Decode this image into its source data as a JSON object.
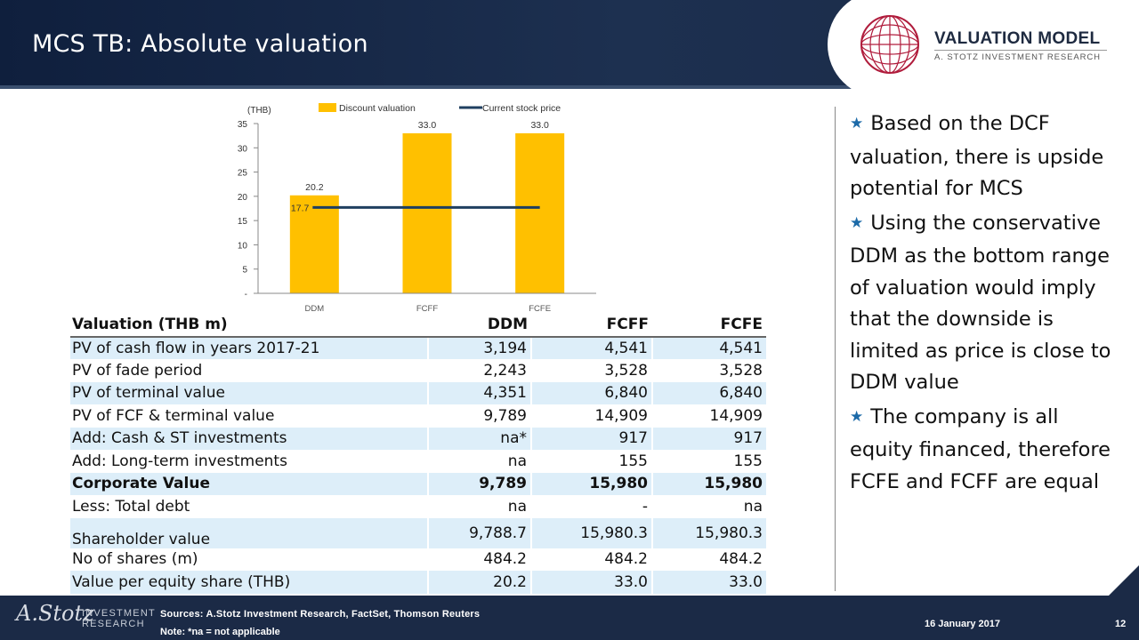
{
  "header": {
    "title": "MCS TB: Absolute valuation",
    "logo_main": "VALUATION MODEL",
    "logo_sub": "A. STOTZ INVESTMENT RESEARCH"
  },
  "chart_data": {
    "type": "bar",
    "ylabel": "(THB)",
    "categories": [
      "DDM",
      "FCFF",
      "FCFE"
    ],
    "series": [
      {
        "name": "Discount valuation",
        "type": "bar",
        "values": [
          20.2,
          33.0,
          33.0
        ],
        "color": "#ffc000"
      },
      {
        "name": "Current stock price",
        "type": "line",
        "values": [
          17.7,
          17.7,
          17.7
        ],
        "color": "#1f3f60"
      }
    ],
    "data_labels": [
      "20.2",
      "33.0",
      "33.0"
    ],
    "line_label": "17.7",
    "ylim": [
      0,
      35
    ],
    "yticks": [
      "-",
      "5",
      "10",
      "15",
      "20",
      "25",
      "30",
      "35"
    ],
    "grid": false,
    "legend": "top"
  },
  "table": {
    "headers": [
      "Valuation (THB m)",
      "DDM",
      "FCFF",
      "FCFE"
    ],
    "rows": [
      {
        "label": "PV of cash flow in years 2017-21",
        "values": [
          "3,194",
          "4,541",
          "4,541"
        ]
      },
      {
        "label": "PV of fade period",
        "values": [
          "2,243",
          "3,528",
          "3,528"
        ]
      },
      {
        "label": "PV of terminal value",
        "values": [
          "4,351",
          "6,840",
          "6,840"
        ]
      },
      {
        "label": "PV of FCF & terminal value",
        "values": [
          "9,789",
          "14,909",
          "14,909"
        ]
      },
      {
        "label": "Add: Cash & ST investments",
        "values": [
          "na*",
          "917",
          "917"
        ]
      },
      {
        "label": "Add: Long-term investments",
        "values": [
          "na",
          "155",
          "155"
        ]
      },
      {
        "label": "Corporate Value",
        "values": [
          "9,789",
          "15,980",
          "15,980"
        ]
      },
      {
        "label": "Less: Total debt",
        "values": [
          "na",
          "-",
          "na"
        ]
      },
      {
        "label": "Shareholder value",
        "values": [
          "9,788.7",
          "15,980.3",
          "15,980.3"
        ]
      },
      {
        "label": "No of shares (m)",
        "values": [
          "484.2",
          "484.2",
          "484.2"
        ]
      },
      {
        "label": "Value per equity share (THB)",
        "values": [
          "20.2",
          "33.0",
          "33.0"
        ]
      }
    ]
  },
  "bullets": [
    "Based on the DCF valuation, there is upside potential for MCS",
    "Using the conservative DDM as the bottom range of valuation would imply that the downside is limited as price is close to DDM value",
    "The company is all equity financed, therefore FCFE and FCFF are equal"
  ],
  "footer": {
    "brand_script": "A.Stotz",
    "brand_line1": "INVESTMENT",
    "brand_line2": "RESEARCH",
    "sources": "Sources: A.Stotz Investment Research, FactSet, Thomson Reuters",
    "note": "Note: *na = not applicable",
    "date": "16 January 2017",
    "page": "12"
  }
}
